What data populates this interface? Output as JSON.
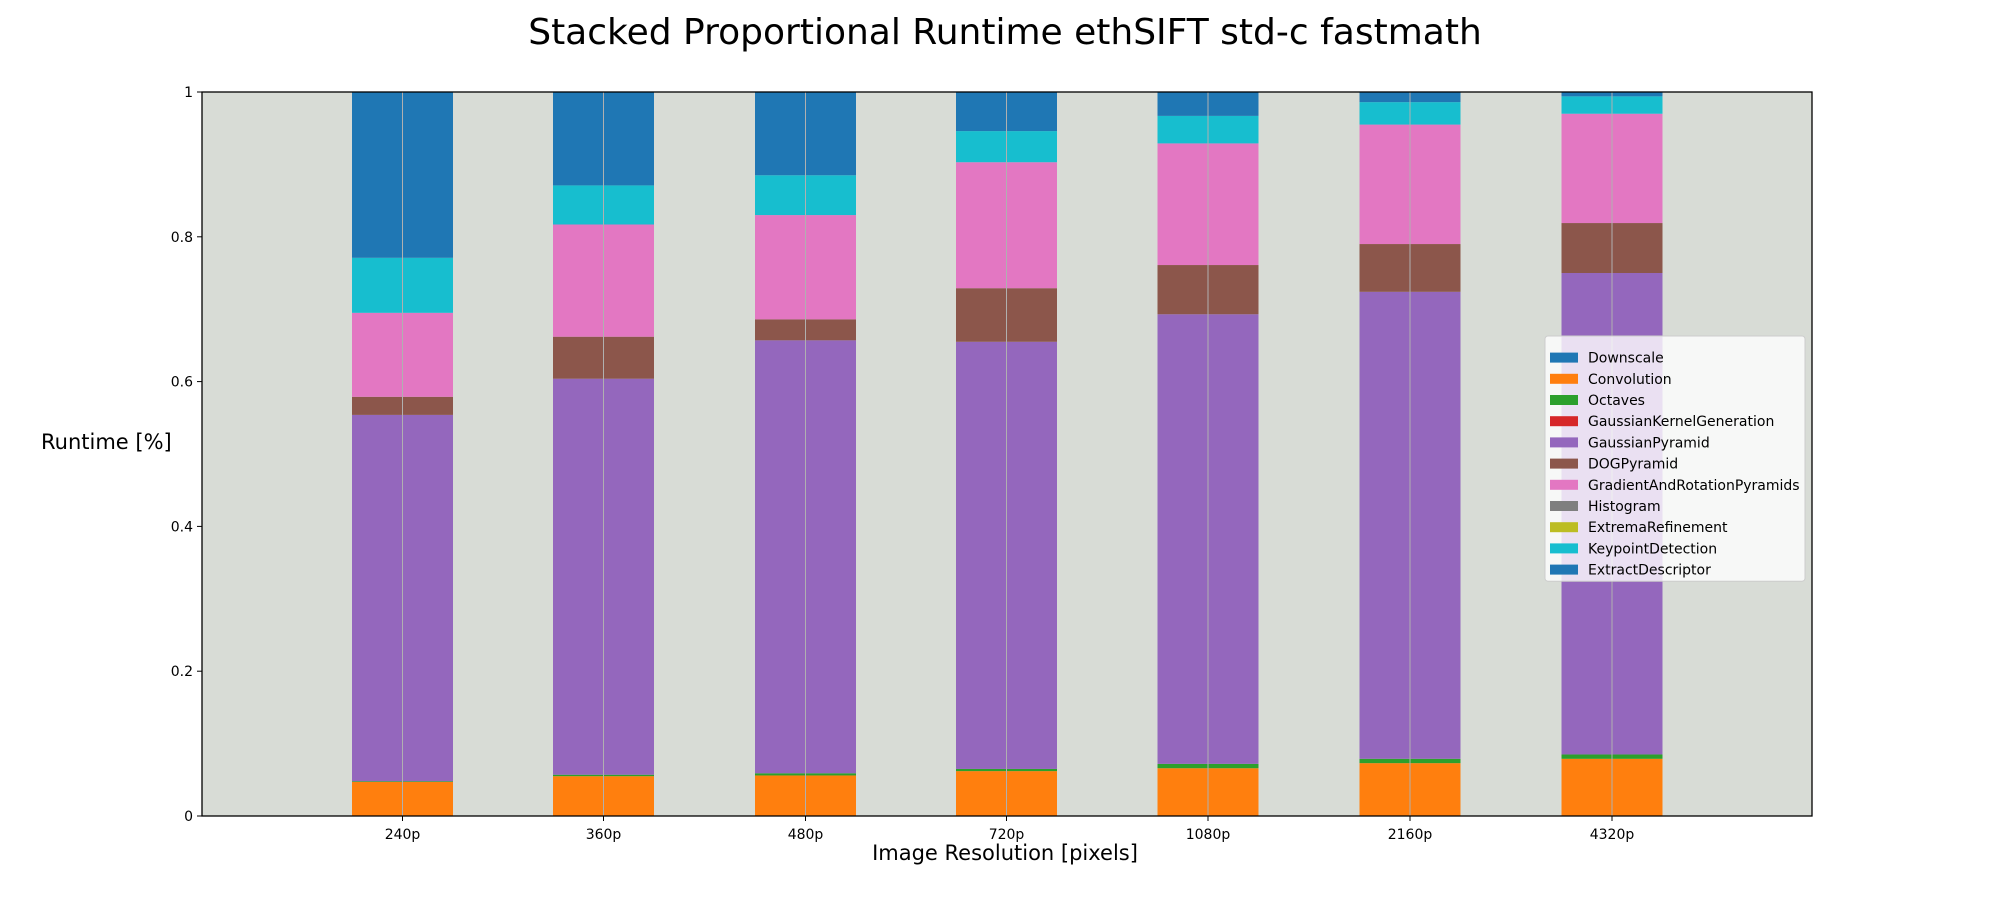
{
  "chart_data": {
    "type": "bar",
    "stacked": true,
    "title": "Stacked Proportional Runtime ethSIFT std-c fastmath",
    "xlabel": "Image Resolution [pixels]",
    "ylabel": "Runtime [%]",
    "ylim": [
      0,
      1
    ],
    "yticks": [
      0,
      0.2,
      0.4,
      0.6,
      0.8,
      1
    ],
    "ytick_labels": [
      "0",
      "0.2",
      "0.4",
      "0.6",
      "0.8",
      "1"
    ],
    "categories": [
      "240p",
      "360p",
      "480p",
      "720p",
      "1080p",
      "2160p",
      "4320p"
    ],
    "grid": "vertical lines at bar centers",
    "legend_position": "center-right",
    "background_color": "#d8dcd6",
    "series": [
      {
        "name": "Downscale",
        "color": "#1f77b4",
        "values": [
          0,
          0,
          0,
          0,
          0,
          0,
          0
        ]
      },
      {
        "name": "Convolution",
        "color": "#ff7f0e",
        "values": [
          0.047,
          0.055,
          0.056,
          0.062,
          0.066,
          0.073,
          0.079
        ]
      },
      {
        "name": "Octaves",
        "color": "#2ca02c",
        "values": [
          0.001,
          0.002,
          0.003,
          0.003,
          0.006,
          0.006,
          0.006
        ]
      },
      {
        "name": "GaussianKernelGeneration",
        "color": "#d62728",
        "values": [
          0,
          0,
          0,
          0,
          0,
          0,
          0
        ]
      },
      {
        "name": "GaussianPyramid",
        "color": "#9467bd",
        "values": [
          0.506,
          0.547,
          0.598,
          0.59,
          0.621,
          0.645,
          0.665
        ]
      },
      {
        "name": "DOGPyramid",
        "color": "#8c564b",
        "values": [
          0.025,
          0.058,
          0.029,
          0.074,
          0.068,
          0.066,
          0.069
        ]
      },
      {
        "name": "GradientAndRotationPyramids",
        "color": "#e377c2",
        "values": [
          0.116,
          0.155,
          0.144,
          0.174,
          0.168,
          0.165,
          0.151
        ]
      },
      {
        "name": "Histogram",
        "color": "#7f7f7f",
        "values": [
          0,
          0,
          0,
          0,
          0,
          0,
          0
        ]
      },
      {
        "name": "ExtremaRefinement",
        "color": "#bcbd22",
        "values": [
          0,
          0,
          0,
          0,
          0,
          0,
          0
        ]
      },
      {
        "name": "KeypointDetection",
        "color": "#17becf",
        "values": [
          0.076,
          0.054,
          0.055,
          0.043,
          0.038,
          0.031,
          0.024
        ]
      },
      {
        "name": "ExtractDescriptor",
        "color": "#1f77b4",
        "values": [
          0.229,
          0.129,
          0.115,
          0.054,
          0.033,
          0.014,
          0.006
        ]
      }
    ]
  }
}
